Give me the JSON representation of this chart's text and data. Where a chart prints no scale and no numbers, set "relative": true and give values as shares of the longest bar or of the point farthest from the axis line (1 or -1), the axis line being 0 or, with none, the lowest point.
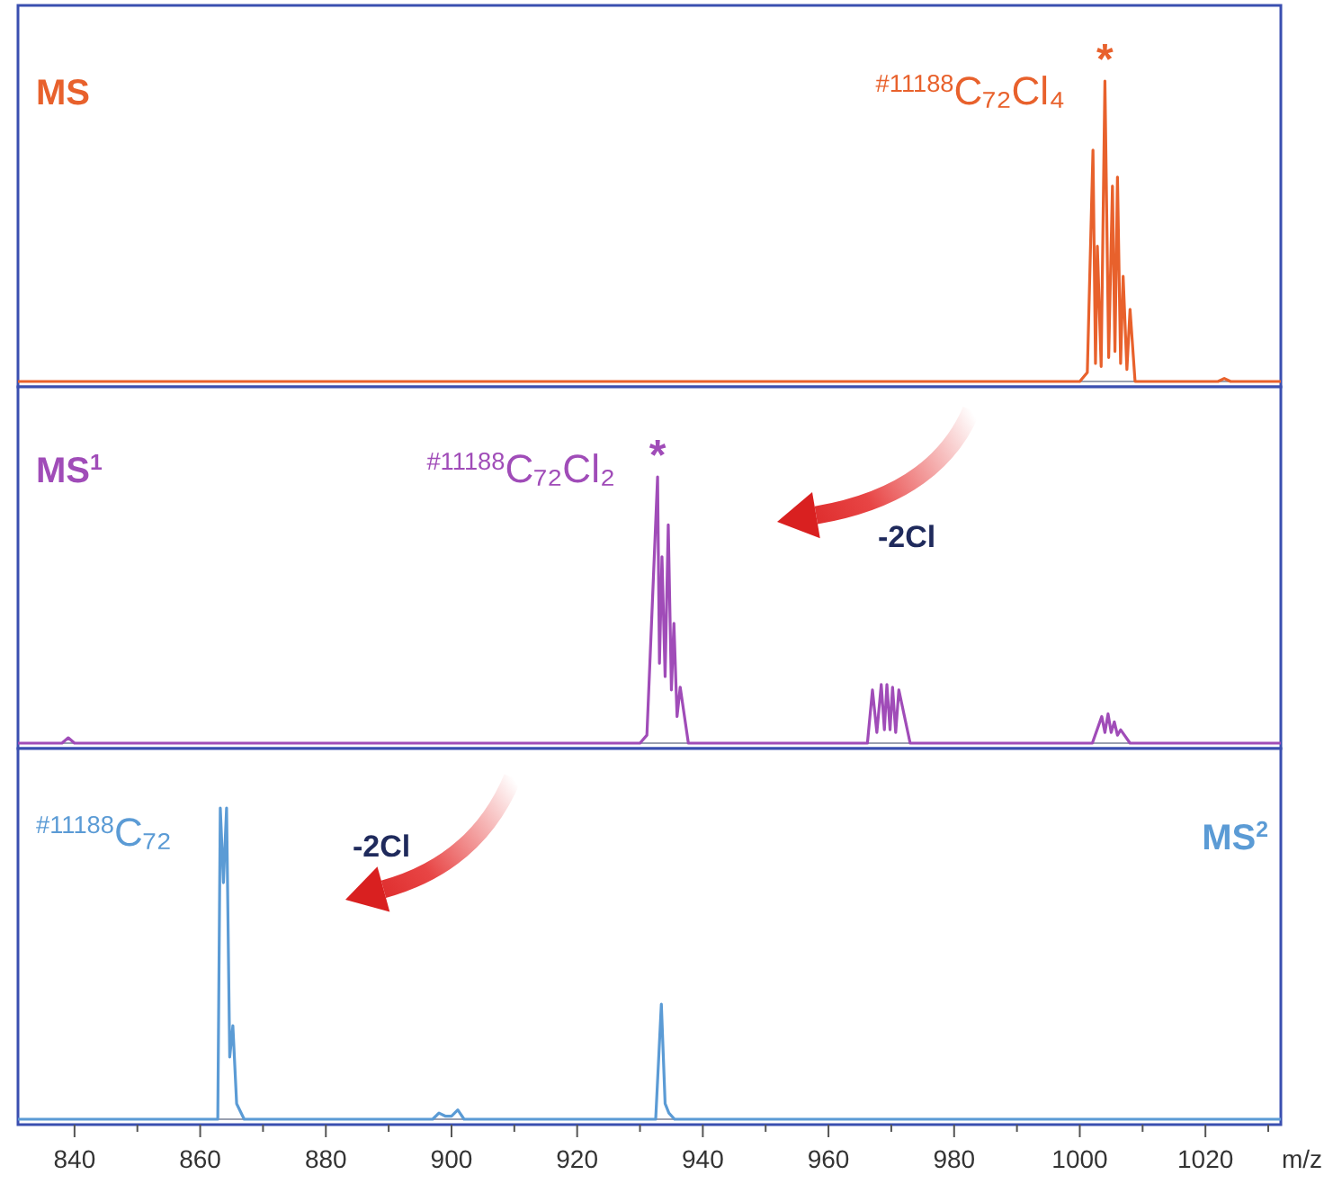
{
  "chart_data": [
    {
      "type": "line",
      "relative": true,
      "xlim": [
        831,
        1032
      ],
      "tick_labels": false,
      "marker": "none",
      "line_style": "solid",
      "series": [
        {
          "color": "#e8612c",
          "x": [
            831,
            1000,
            1001.2,
            1002.1,
            1002.5,
            1002.8,
            1003.4,
            1004.0,
            1004.6,
            1005.2,
            1005.6,
            1006.0,
            1006.5,
            1006.9,
            1007.5,
            1008.0,
            1008.8,
            1022,
            1023,
            1024,
            1032
          ],
          "values": [
            0,
            0,
            0.03,
            0.77,
            0.06,
            0.45,
            0.05,
            1,
            0.08,
            0.65,
            0.1,
            0.68,
            0.06,
            0.35,
            0.04,
            0.24,
            0,
            0,
            0.01,
            0,
            0
          ]
        }
      ],
      "annotations": [
        "MS",
        "$^{#11188}$C₇₂Cl₄",
        {
          "text": "*",
          "x": 1004.0,
          "y": 1
        }
      ]
    },
    {
      "type": "line",
      "relative": true,
      "xlim": [
        831,
        1032
      ],
      "tick_labels": false,
      "marker": "none",
      "line_style": "solid",
      "series": [
        {
          "color": "#a04cb8",
          "x": [
            831,
            838,
            839,
            840,
            850,
            930,
            931.1,
            932.8,
            933.1,
            933.5,
            934.0,
            934.5,
            935.0,
            935.4,
            935.9,
            936.4,
            937.7,
            966.2,
            967.0,
            967.7,
            968.4,
            968.9,
            969.3,
            969.8,
            970.2,
            970.7,
            971.2,
            973,
            1002,
            1003.5,
            1004,
            1004.5,
            1005,
            1005.5,
            1006,
            1006.5,
            1008,
            1032
          ],
          "values": [
            0,
            0,
            0.02,
            0,
            0,
            0,
            0.03,
            1,
            0.3,
            0.7,
            0.25,
            0.82,
            0.2,
            0.45,
            0.1,
            0.21,
            0,
            0,
            0.2,
            0.04,
            0.22,
            0.05,
            0.22,
            0.05,
            0.21,
            0.04,
            0.2,
            0,
            0,
            0.1,
            0.04,
            0.11,
            0.04,
            0.08,
            0.03,
            0.05,
            0,
            0
          ]
        }
      ],
      "annotations": [
        "MS$^{1}$",
        "$^{#11188}$C₇₂Cl₂",
        {
          "text": "*",
          "x": 932.8,
          "y": 1
        },
        "-2Cl"
      ]
    },
    {
      "type": "line",
      "relative": true,
      "xlim": [
        831,
        1032
      ],
      "tick_labels": "x",
      "marker": "none",
      "line_style": "solid",
      "xlabel": "m/z",
      "xticks": [
        840,
        {
          "value": 850,
          "label": null
        },
        860,
        {
          "value": 870,
          "label": null
        },
        880,
        {
          "value": 890,
          "label": null
        },
        900,
        {
          "value": 910,
          "label": null
        },
        920,
        {
          "value": 930,
          "label": null
        },
        940,
        {
          "value": 950,
          "label": null
        },
        960,
        {
          "value": 970,
          "label": null
        },
        980,
        {
          "value": 990,
          "label": null
        },
        1000,
        {
          "value": 1010,
          "label": null
        },
        1020,
        {
          "value": 1030,
          "label": null
        }
      ],
      "series": [
        {
          "color": "#5b9bd5",
          "x": [
            831,
            862.8,
            863.2,
            863.7,
            864.2,
            864.7,
            865.2,
            865.8,
            867,
            897,
            898,
            899,
            900,
            901,
            902,
            932.5,
            933.4,
            934.0,
            934.6,
            935.5,
            1032
          ],
          "values": [
            0,
            0,
            1,
            0.76,
            1,
            0.2,
            0.3,
            0.05,
            0,
            0,
            0.02,
            0.01,
            0.01,
            0.03,
            0,
            0,
            0.37,
            0.05,
            0.02,
            0,
            0
          ]
        }
      ],
      "annotations": [
        "$^{#11188}$C₇₂",
        "-2Cl",
        "MS$^{2}$"
      ]
    }
  ]
}
